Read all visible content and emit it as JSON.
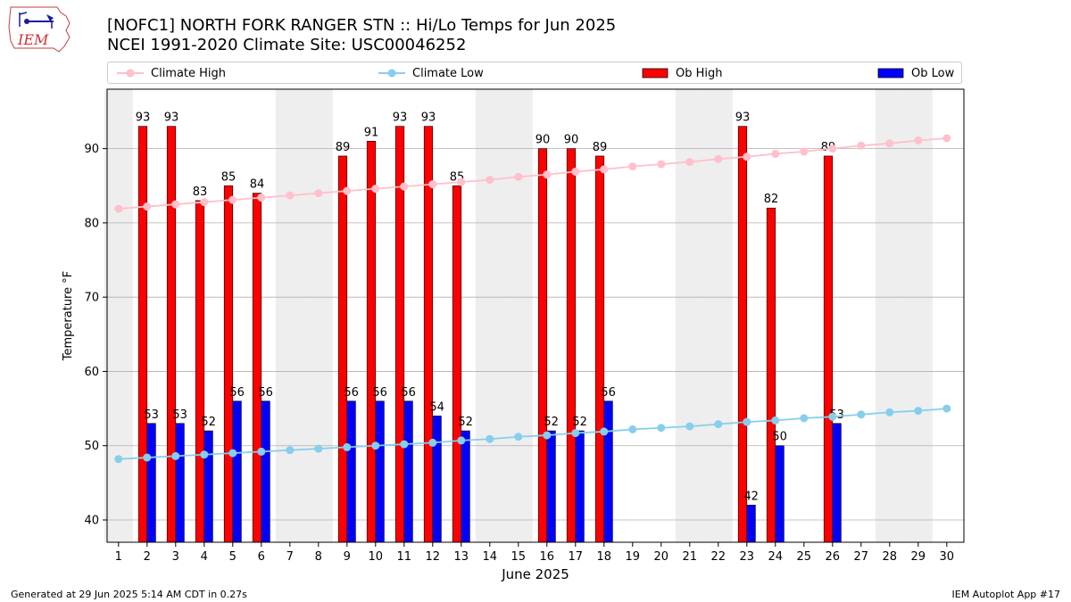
{
  "header": {
    "title_line1": "[NOFC1] NORTH FORK RANGER STN :: Hi/Lo Temps for Jun 2025",
    "title_line2": "NCEI 1991-2020 Climate Site: USC00046252",
    "logo_text": "IEM"
  },
  "legend": {
    "climate_high": "Climate High",
    "climate_low": "Climate Low",
    "ob_high": "Ob High",
    "ob_low": "Ob Low"
  },
  "colors": {
    "climate_high": "#ffc0cb",
    "climate_low": "#87ceeb",
    "ob_high": "#ff0000",
    "ob_low": "#0000ff",
    "weekend_shade": "#eeeeee",
    "grid": "#b0b0b0"
  },
  "footer": {
    "left": "Generated at 29 Jun 2025 5:14 AM CDT in 0.27s",
    "right": "IEM Autoplot App #17"
  },
  "chart_data": {
    "type": "bar",
    "xlabel": "June 2025",
    "ylabel": "Temperature °F",
    "ylim": [
      37,
      98
    ],
    "yticks": [
      40,
      50,
      60,
      70,
      80,
      90
    ],
    "grid": "horizontal",
    "legend_position": "top",
    "days": [
      1,
      2,
      3,
      4,
      5,
      6,
      7,
      8,
      9,
      10,
      11,
      12,
      13,
      14,
      15,
      16,
      17,
      18,
      19,
      20,
      21,
      22,
      23,
      24,
      25,
      26,
      27,
      28,
      29,
      30
    ],
    "shaded_days": [
      1,
      7,
      8,
      14,
      15,
      21,
      22,
      28,
      29
    ],
    "climate_high": [
      81.9,
      82.2,
      82.5,
      82.8,
      83.1,
      83.4,
      83.7,
      84.0,
      84.3,
      84.6,
      84.9,
      85.2,
      85.5,
      85.8,
      86.2,
      86.5,
      86.9,
      87.2,
      87.6,
      87.9,
      88.2,
      88.6,
      88.9,
      89.3,
      89.6,
      90.0,
      90.4,
      90.7,
      91.1,
      91.4
    ],
    "climate_low": [
      48.2,
      48.4,
      48.6,
      48.8,
      49.0,
      49.2,
      49.4,
      49.6,
      49.8,
      50.0,
      50.2,
      50.4,
      50.7,
      50.9,
      51.2,
      51.4,
      51.7,
      51.9,
      52.2,
      52.4,
      52.6,
      52.9,
      53.2,
      53.4,
      53.7,
      53.9,
      54.2,
      54.5,
      54.7,
      55.0
    ],
    "ob_high": [
      null,
      93,
      93,
      83,
      85,
      84,
      null,
      null,
      89,
      91,
      93,
      93,
      85,
      null,
      null,
      90,
      90,
      89,
      null,
      null,
      null,
      null,
      93,
      82,
      null,
      89,
      null,
      null,
      null,
      null
    ],
    "ob_low": [
      null,
      53,
      53,
      52,
      56,
      56,
      null,
      null,
      56,
      56,
      56,
      54,
      52,
      null,
      null,
      52,
      52,
      56,
      null,
      null,
      null,
      null,
      42,
      50,
      null,
      53,
      null,
      null,
      null,
      null
    ]
  }
}
